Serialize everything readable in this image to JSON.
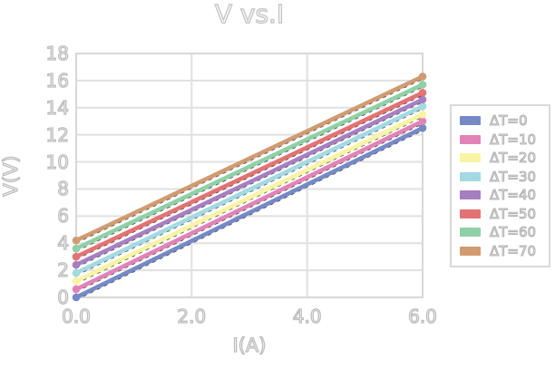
{
  "chart_data": {
    "type": "line",
    "title": "V vs.I",
    "xlabel": "I(A)",
    "ylabel": "V(V)",
    "xlim": [
      0,
      6
    ],
    "ylim": [
      0,
      18
    ],
    "grid": true,
    "legend_position": "right of plot",
    "black_dashed_underlay": true,
    "x_ticks": [
      {
        "label": "0.0",
        "value": 0
      },
      {
        "label": "2.0",
        "value": 2
      },
      {
        "label": "4.0",
        "value": 4
      },
      {
        "label": "6.0",
        "value": 6
      }
    ],
    "y_ticks": [
      {
        "label": "0",
        "value": 0
      },
      {
        "label": "2",
        "value": 2
      },
      {
        "label": "4",
        "value": 4
      },
      {
        "label": "6",
        "value": 6
      },
      {
        "label": "8",
        "value": 8
      },
      {
        "label": "10",
        "value": 10
      },
      {
        "label": "12",
        "value": 12
      },
      {
        "label": "14",
        "value": 14
      },
      {
        "label": "16",
        "value": 16
      },
      {
        "label": "18",
        "value": 18
      }
    ],
    "x": [
      0,
      6
    ],
    "series": [
      {
        "name": "ΔT=0",
        "color": "#7589c6",
        "values": [
          0.0,
          12.5
        ]
      },
      {
        "name": "ΔT=10",
        "color": "#e283b7",
        "values": [
          0.6,
          13.0
        ]
      },
      {
        "name": "ΔT=20",
        "color": "#f9f4a3",
        "values": [
          1.2,
          13.5
        ]
      },
      {
        "name": "ΔT=30",
        "color": "#a3d9e2",
        "values": [
          1.8,
          14.1
        ]
      },
      {
        "name": "ΔT=40",
        "color": "#a77fc1",
        "values": [
          2.4,
          14.6
        ]
      },
      {
        "name": "ΔT=50",
        "color": "#e47272",
        "values": [
          3.0,
          15.1
        ]
      },
      {
        "name": "ΔT=60",
        "color": "#8fd0a7",
        "values": [
          3.6,
          15.7
        ]
      },
      {
        "name": "ΔT=70",
        "color": "#d19b71",
        "values": [
          4.2,
          16.3
        ]
      }
    ],
    "style": {
      "background": "#ffffff",
      "gridline_color": "#e0e0e0",
      "spine_color": "#d8d8d8",
      "text_outline_color": "#bdbdbd",
      "dashed_underlay_color": "#3f3f3f"
    }
  }
}
